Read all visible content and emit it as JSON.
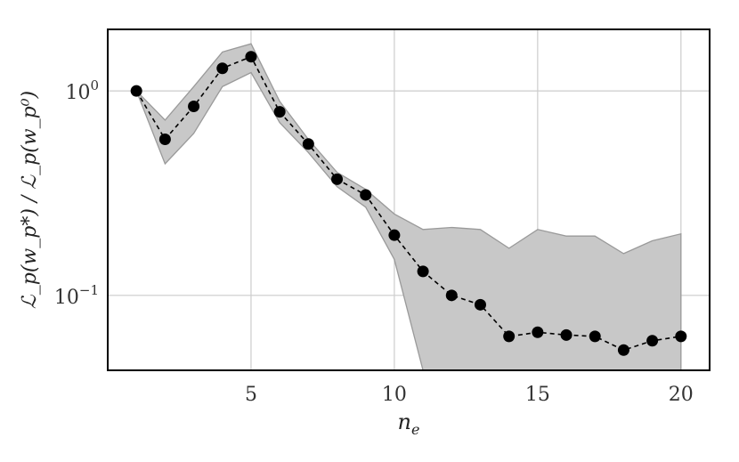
{
  "chart_data": {
    "type": "line",
    "title": "",
    "xlabel": "n_e",
    "ylabel": "ℒ_p(w_p*) / ℒ_p(w_p⁰)",
    "x_ticks": [
      5,
      10,
      15,
      20
    ],
    "x_tick_labels": [
      "5",
      "10",
      "15",
      "20"
    ],
    "y_ticks": [
      1,
      0.1
    ],
    "y_tick_labels": [
      "10^0",
      "10^-1"
    ],
    "yscale": "log",
    "xlim": [
      0,
      21
    ],
    "ylim": [
      0.043,
      2.0
    ],
    "grid": true,
    "x": [
      1,
      2,
      3,
      4,
      5,
      6,
      7,
      8,
      9,
      10,
      11,
      12,
      13,
      14,
      15,
      16,
      17,
      18,
      19,
      20
    ],
    "series": [
      {
        "values": [
          1.0,
          0.58,
          0.84,
          1.29,
          1.47,
          0.79,
          0.55,
          0.37,
          0.31,
          0.197,
          0.131,
          0.1,
          0.09,
          0.063,
          0.066,
          0.064,
          0.063,
          0.054,
          0.06,
          0.063
        ],
        "color": "#000000",
        "linestyle": "dashed",
        "marker": "circle"
      }
    ],
    "band": {
      "lower": [
        1.0,
        0.44,
        0.62,
        1.05,
        1.23,
        0.7,
        0.5,
        0.34,
        0.27,
        0.15,
        0.043,
        0.043,
        0.043,
        0.043,
        0.043,
        0.043,
        0.043,
        0.043,
        0.043,
        0.043
      ],
      "upper": [
        1.0,
        0.72,
        1.05,
        1.55,
        1.7,
        0.89,
        0.58,
        0.4,
        0.33,
        0.25,
        0.21,
        0.215,
        0.21,
        0.17,
        0.21,
        0.195,
        0.195,
        0.16,
        0.185,
        0.2
      ],
      "color": "#c8c8c8",
      "edge_color": "#9a9a9a"
    },
    "grid_color": "#cccccc"
  }
}
